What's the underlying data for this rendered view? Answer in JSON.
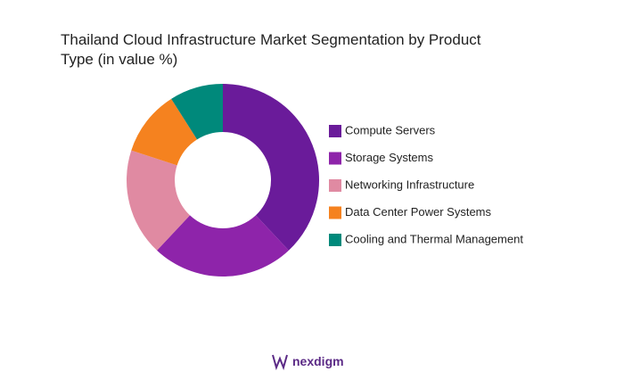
{
  "chart_data": {
    "type": "donut",
    "title": [
      "Thailand Cloud Infrastructure Market Segmentation by Product",
      "Type (in value %)"
    ],
    "categories": [
      "Compute Servers",
      "Storage Systems",
      "Networking Infrastructure",
      "Data Center Power Systems",
      "Cooling and Thermal Management"
    ],
    "values": [
      38,
      24,
      18,
      11,
      9
    ],
    "colors": [
      "#6a1b9a",
      "#8e24aa",
      "#e08aa2",
      "#f5821f",
      "#00897b"
    ]
  },
  "brand": "nexdigm"
}
